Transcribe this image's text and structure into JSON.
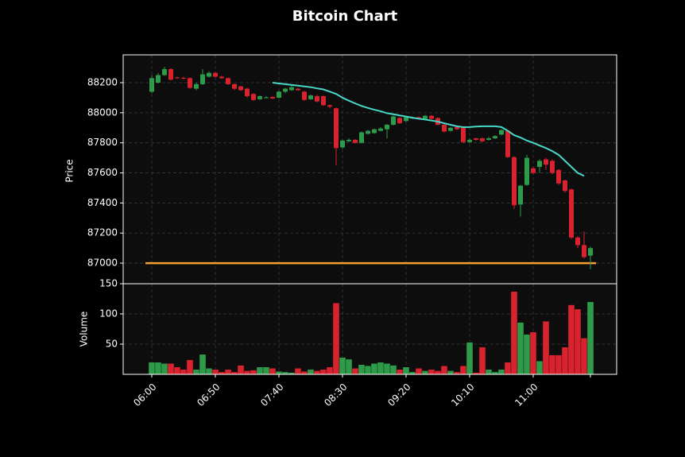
{
  "chart_data": {
    "type": "candlestick",
    "title": "Bitcoin Chart",
    "ylabel": "Price",
    "categories": [
      "06:00",
      null,
      null,
      null,
      null,
      null,
      null,
      null,
      null,
      null,
      "06:50",
      null,
      null,
      null,
      null,
      null,
      null,
      null,
      null,
      null,
      "07:40",
      null,
      null,
      null,
      null,
      null,
      null,
      null,
      null,
      null,
      "08:30",
      null,
      null,
      null,
      null,
      null,
      null,
      null,
      null,
      null,
      "09:20",
      null,
      null,
      null,
      null,
      null,
      null,
      null,
      null,
      null,
      "10:10",
      null,
      null,
      null,
      null,
      null,
      null,
      null,
      null,
      null,
      "11:00",
      null,
      null,
      null,
      null,
      null,
      null,
      null,
      null,
      null
    ],
    "open": [
      88140,
      88200,
      88250,
      88290,
      88235,
      88232,
      88230,
      88160,
      88190,
      88240,
      88265,
      88240,
      88230,
      88190,
      88175,
      88160,
      88125,
      88090,
      88098,
      88105,
      88100,
      88140,
      88150,
      88160,
      88140,
      88090,
      88110,
      88110,
      88050,
      88030,
      87770,
      87810,
      87820,
      87800,
      87860,
      87865,
      87880,
      87890,
      87920,
      87965,
      87945,
      87963,
      87970,
      87960,
      87980,
      87965,
      87920,
      87880,
      87905,
      87900,
      87805,
      87830,
      87830,
      87820,
      87830,
      87855,
      87880,
      87705,
      87390,
      87520,
      87630,
      87640,
      87690,
      87680,
      87620,
      87550,
      87490,
      87170,
      87120,
      87050
    ],
    "high": [
      88250,
      88265,
      88305,
      88295,
      88240,
      88240,
      88235,
      88200,
      88290,
      88275,
      88270,
      88245,
      88235,
      88195,
      88180,
      88165,
      88130,
      88115,
      88110,
      88110,
      88145,
      88165,
      88180,
      88165,
      88145,
      88120,
      88120,
      88115,
      88055,
      88035,
      87820,
      87830,
      87825,
      87875,
      87885,
      87895,
      87905,
      87925,
      87980,
      87970,
      87975,
      87975,
      87975,
      87985,
      87985,
      87970,
      87925,
      87905,
      87910,
      87905,
      87830,
      87835,
      87835,
      87840,
      87850,
      87890,
      87885,
      87710,
      87520,
      87720,
      87640,
      87690,
      87700,
      87690,
      87625,
      87555,
      87495,
      87180,
      87210,
      87110
    ],
    "low": [
      88130,
      88195,
      88245,
      88215,
      88225,
      88222,
      88160,
      88150,
      88185,
      88235,
      88235,
      88225,
      88185,
      88150,
      88145,
      88100,
      88080,
      88085,
      88095,
      88090,
      88095,
      88130,
      88145,
      88145,
      88080,
      88085,
      88070,
      88045,
      88030,
      87650,
      87760,
      87805,
      87795,
      87795,
      87855,
      87860,
      87875,
      87830,
      87915,
      87925,
      87940,
      87958,
      87960,
      87955,
      87955,
      87915,
      87870,
      87875,
      87885,
      87800,
      87800,
      87815,
      87805,
      87815,
      87825,
      87850,
      87700,
      87360,
      87310,
      87515,
      87590,
      87600,
      87620,
      87590,
      87520,
      87470,
      87160,
      87100,
      87030,
      86960
    ],
    "close": [
      88230,
      88250,
      88290,
      88220,
      88230,
      88228,
      88165,
      88190,
      88255,
      88265,
      88240,
      88230,
      88190,
      88160,
      88150,
      88110,
      88085,
      88110,
      88102,
      88095,
      88140,
      88160,
      88170,
      88150,
      88085,
      88115,
      88075,
      88050,
      88040,
      87765,
      87815,
      87820,
      87800,
      87870,
      87880,
      87890,
      87895,
      87920,
      87975,
      87930,
      87970,
      87967,
      87965,
      87980,
      87960,
      87920,
      87875,
      87900,
      87890,
      87805,
      87820,
      87820,
      87810,
      87830,
      87845,
      87885,
      87705,
      87385,
      87515,
      87700,
      87600,
      87680,
      87655,
      87600,
      87530,
      87480,
      87170,
      87120,
      87040,
      87100
    ],
    "up_color": "#2e9b4a",
    "down_color": "#d8232f",
    "ylim": [
      86863,
      88385
    ],
    "yticks": [
      87000,
      87200,
      87400,
      87600,
      87800,
      88000,
      88200
    ],
    "grid": true,
    "ma": {
      "color": "#48d8c8",
      "values": [
        null,
        null,
        null,
        null,
        null,
        null,
        null,
        null,
        null,
        null,
        null,
        null,
        null,
        null,
        null,
        null,
        null,
        null,
        null,
        88200,
        88195,
        88190,
        88185,
        88180,
        88175,
        88170,
        88162,
        88155,
        88140,
        88125,
        88100,
        88080,
        88062,
        88045,
        88032,
        88020,
        88010,
        87997,
        87990,
        87982,
        87975,
        87967,
        87960,
        87955,
        87948,
        87941,
        87930,
        87920,
        87910,
        87904,
        87905,
        87908,
        87910,
        87910,
        87910,
        87905,
        87880,
        87851,
        87835,
        87815,
        87800,
        87782,
        87765,
        87745,
        87720,
        87680,
        87640,
        87600,
        87580,
        null
      ]
    },
    "hline": {
      "value": 87000,
      "color": "#f5a030"
    },
    "volume": {
      "ylabel": "Volume",
      "ylim": [
        0,
        150
      ],
      "yticks": [
        50,
        100,
        150
      ],
      "values": [
        20,
        20,
        18,
        18,
        12,
        8,
        24,
        8,
        33,
        10,
        8,
        4,
        8,
        4,
        15,
        6,
        7,
        12,
        12,
        10,
        5,
        4,
        3,
        10,
        5,
        8,
        6,
        8,
        12,
        118,
        28,
        25,
        10,
        16,
        14,
        18,
        20,
        18,
        15,
        8,
        12,
        4,
        10,
        6,
        8,
        6,
        14,
        6,
        4,
        14,
        53,
        3,
        45,
        8,
        4,
        8,
        20,
        137,
        86,
        66,
        70,
        22,
        88,
        32,
        32,
        45,
        115,
        108,
        60,
        120
      ]
    }
  }
}
